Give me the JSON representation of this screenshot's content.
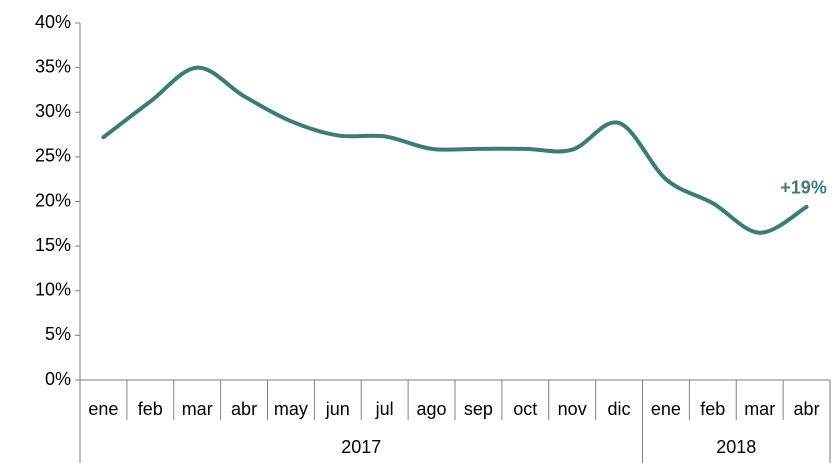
{
  "chart_data": {
    "type": "line",
    "categories": [
      "ene",
      "feb",
      "mar",
      "abr",
      "may",
      "jun",
      "jul",
      "ago",
      "sep",
      "oct",
      "nov",
      "dic",
      "ene",
      "feb",
      "mar",
      "abr"
    ],
    "groups": [
      {
        "label": "2017",
        "count": 12
      },
      {
        "label": "2018",
        "count": 4
      }
    ],
    "series": [
      {
        "color": "#3b7d74",
        "values": [
          27.2,
          31.2,
          35.0,
          31.8,
          29.0,
          27.4,
          27.3,
          25.9,
          25.9,
          25.9,
          25.8,
          28.8,
          22.5,
          19.8,
          16.5,
          19.4
        ]
      }
    ],
    "ylim": [
      0,
      40
    ],
    "yticks": [
      {
        "value": 0,
        "label": "0%"
      },
      {
        "value": 5,
        "label": "5%"
      },
      {
        "value": 10,
        "label": "10%"
      },
      {
        "value": 15,
        "label": "15%"
      },
      {
        "value": 20,
        "label": "20%"
      },
      {
        "value": 25,
        "label": "25%"
      },
      {
        "value": 30,
        "label": "30%"
      },
      {
        "value": 35,
        "label": "35%"
      },
      {
        "value": 40,
        "label": "40%"
      }
    ],
    "annotation": "+19%"
  }
}
